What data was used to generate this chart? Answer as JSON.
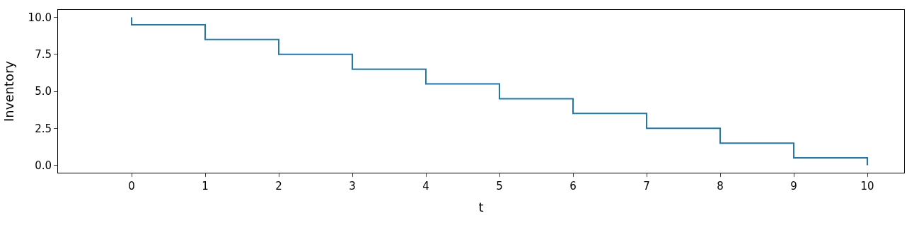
{
  "chart_data": {
    "type": "line",
    "xlabel": "t",
    "ylabel": "Inventory",
    "x": [
      0,
      0,
      1,
      1,
      2,
      2,
      3,
      3,
      4,
      4,
      5,
      5,
      6,
      6,
      7,
      7,
      8,
      8,
      9,
      9,
      10,
      10
    ],
    "series": [
      {
        "color": "#1f77b4",
        "values": [
          10,
          9.5,
          9.5,
          8.5,
          8.5,
          7.5,
          7.5,
          6.5,
          6.5,
          5.5,
          5.5,
          4.5,
          4.5,
          3.5,
          3.5,
          2.5,
          2.5,
          1.5,
          1.5,
          0.5,
          0.5,
          0
        ]
      }
    ],
    "xlim": [
      -1,
      10.5
    ],
    "xticks": [
      0,
      1,
      2,
      3,
      4,
      5,
      6,
      7,
      8,
      9,
      10
    ],
    "ylim": [
      -0.5,
      10.5
    ],
    "yticks": [
      {
        "value": 0,
        "label": "0.0"
      },
      {
        "value": 2.5,
        "label": "2.5"
      },
      {
        "value": 5,
        "label": "5.0"
      },
      {
        "value": 7.5,
        "label": "7.5"
      },
      {
        "value": 10,
        "label": "10.0"
      }
    ]
  }
}
